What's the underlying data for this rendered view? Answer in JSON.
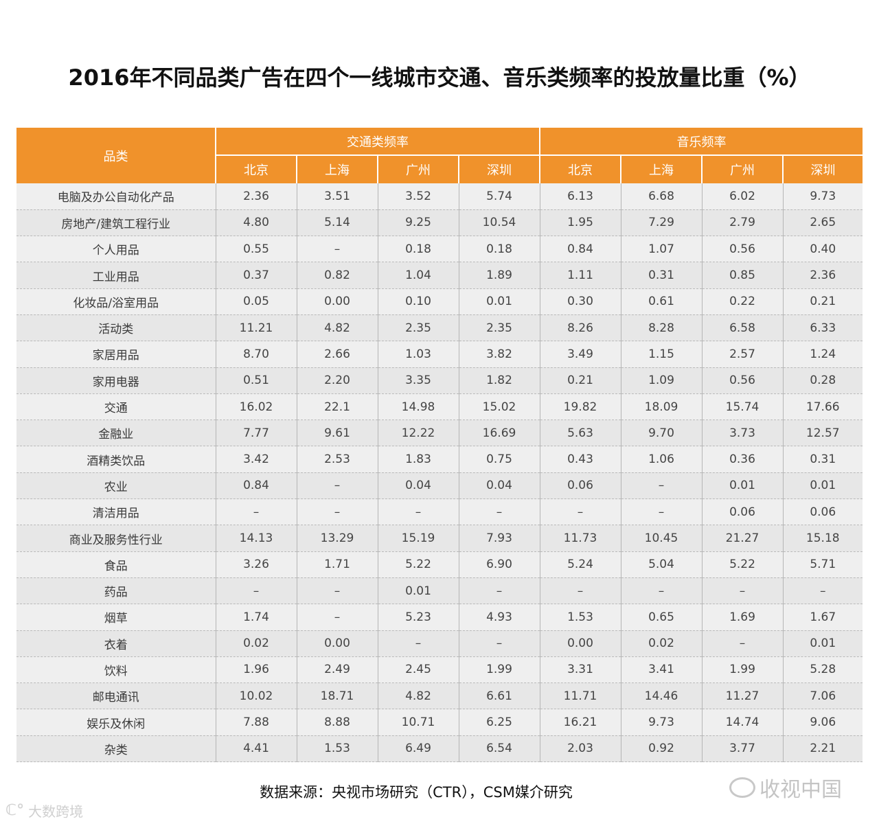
{
  "title": "2016年不同品类广告在四个一线城市交通、音乐类频率的投放量比重（%）",
  "table": {
    "category_header": "品类",
    "groups": [
      "交通类频率",
      "音乐频率"
    ],
    "cities": [
      "北京",
      "上海",
      "广州",
      "深圳",
      "北京",
      "上海",
      "广州",
      "深圳"
    ],
    "rows": [
      [
        "电脑及办公自动化产品",
        "2.36",
        "3.51",
        "3.52",
        "5.74",
        "6.13",
        "6.68",
        "6.02",
        "9.73"
      ],
      [
        "房地产/建筑工程行业",
        "4.80",
        "5.14",
        "9.25",
        "10.54",
        "1.95",
        "7.29",
        "2.79",
        "2.65"
      ],
      [
        "个人用品",
        "0.55",
        "–",
        "0.18",
        "0.18",
        "0.84",
        "1.07",
        "0.56",
        "0.40"
      ],
      [
        "工业用品",
        "0.37",
        "0.82",
        "1.04",
        "1.89",
        "1.11",
        "0.31",
        "0.85",
        "2.36"
      ],
      [
        "化妆品/浴室用品",
        "0.05",
        "0.00",
        "0.10",
        "0.01",
        "0.30",
        "0.61",
        "0.22",
        "0.21"
      ],
      [
        "活动类",
        "11.21",
        "4.82",
        "2.35",
        "2.35",
        "8.26",
        "8.28",
        "6.58",
        "6.33"
      ],
      [
        "家居用品",
        "8.70",
        "2.66",
        "1.03",
        "3.82",
        "3.49",
        "1.15",
        "2.57",
        "1.24"
      ],
      [
        "家用电器",
        "0.51",
        "2.20",
        "3.35",
        "1.82",
        "0.21",
        "1.09",
        "0.56",
        "0.28"
      ],
      [
        "交通",
        "16.02",
        "22.1",
        "14.98",
        "15.02",
        "19.82",
        "18.09",
        "15.74",
        "17.66"
      ],
      [
        "金融业",
        "7.77",
        "9.61",
        "12.22",
        "16.69",
        "5.63",
        "9.70",
        "3.73",
        "12.57"
      ],
      [
        "酒精类饮品",
        "3.42",
        "2.53",
        "1.83",
        "0.75",
        "0.43",
        "1.06",
        "0.36",
        "0.31"
      ],
      [
        "农业",
        "0.84",
        "–",
        "0.04",
        "0.04",
        "0.06",
        "–",
        "0.01",
        "0.01"
      ],
      [
        "清洁用品",
        "–",
        "–",
        "–",
        "–",
        "–",
        "–",
        "0.06",
        "0.06"
      ],
      [
        "商业及服务性行业",
        "14.13",
        "13.29",
        "15.19",
        "7.93",
        "11.73",
        "10.45",
        "21.27",
        "15.18"
      ],
      [
        "食品",
        "3.26",
        "1.71",
        "5.22",
        "6.90",
        "5.24",
        "5.04",
        "5.22",
        "5.71"
      ],
      [
        "药品",
        "–",
        "–",
        "0.01",
        "–",
        "–",
        "–",
        "–",
        "–"
      ],
      [
        "烟草",
        "1.74",
        "–",
        "5.23",
        "4.93",
        "1.53",
        "0.65",
        "1.69",
        "1.67"
      ],
      [
        "衣着",
        "0.02",
        "0.00",
        "–",
        "–",
        "0.00",
        "0.02",
        "–",
        "0.01"
      ],
      [
        "饮料",
        "1.96",
        "2.49",
        "2.45",
        "1.99",
        "3.31",
        "3.41",
        "1.99",
        "5.28"
      ],
      [
        "邮电通讯",
        "10.02",
        "18.71",
        "4.82",
        "6.61",
        "11.71",
        "14.46",
        "11.27",
        "7.06"
      ],
      [
        "娱乐及休闲",
        "7.88",
        "8.88",
        "10.71",
        "6.25",
        "16.21",
        "9.73",
        "14.74",
        "9.06"
      ],
      [
        "杂类",
        "4.41",
        "1.53",
        "6.49",
        "6.54",
        "2.03",
        "0.92",
        "3.77",
        "2.21"
      ]
    ]
  },
  "source": "数据来源：央视市场研究（CTR），CSM媒介研究",
  "watermarks": {
    "left_text": "大数跨境",
    "left_icon": "logo-icon",
    "right_text": "收视中国",
    "right_icon": "wechat-icon"
  },
  "colors": {
    "header_bg": "#f0922b",
    "row_bg": "#efefef"
  }
}
